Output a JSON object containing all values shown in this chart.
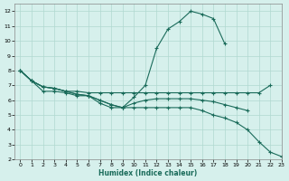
{
  "xlabel": "Humidex (Indice chaleur)",
  "bg_color": "#d6f0ec",
  "grid_color": "#b0d8d0",
  "line_color": "#1a6b5a",
  "xlim": [
    -0.5,
    23
  ],
  "ylim": [
    2,
    12.5
  ],
  "xticks": [
    0,
    1,
    2,
    3,
    4,
    5,
    6,
    7,
    8,
    9,
    10,
    11,
    12,
    13,
    14,
    15,
    16,
    17,
    18,
    19,
    20,
    21,
    22,
    23
  ],
  "yticks": [
    2,
    3,
    4,
    5,
    6,
    7,
    8,
    9,
    10,
    11,
    12
  ],
  "line1_x": [
    0,
    1,
    2,
    3,
    4,
    5,
    6,
    7,
    8,
    9,
    10,
    11,
    12,
    13,
    14,
    15,
    16,
    17,
    18
  ],
  "line1_y": [
    8.0,
    7.3,
    6.6,
    6.6,
    6.5,
    6.3,
    6.3,
    5.8,
    5.5,
    5.5,
    6.2,
    7.0,
    9.5,
    10.8,
    11.3,
    12.0,
    11.8,
    11.5,
    9.8
  ],
  "line2_x": [
    0,
    1,
    2,
    3,
    4,
    5,
    6,
    7,
    8,
    9,
    10,
    11,
    12,
    13,
    14,
    15,
    16,
    17,
    18,
    19,
    20,
    21,
    22
  ],
  "line2_y": [
    8.0,
    7.3,
    6.9,
    6.8,
    6.6,
    6.6,
    6.5,
    6.5,
    6.5,
    6.5,
    6.5,
    6.5,
    6.5,
    6.5,
    6.5,
    6.5,
    6.5,
    6.5,
    6.5,
    6.5,
    6.5,
    6.5,
    7.0
  ],
  "line3_x": [
    0,
    1,
    2,
    3,
    4,
    5,
    6,
    7,
    8,
    9,
    10,
    11,
    12,
    13,
    14,
    15,
    16,
    17,
    18,
    19,
    20
  ],
  "line3_y": [
    8.0,
    7.3,
    6.9,
    6.8,
    6.6,
    6.4,
    6.3,
    6.0,
    5.7,
    5.5,
    5.8,
    6.0,
    6.1,
    6.1,
    6.1,
    6.1,
    6.0,
    5.9,
    5.7,
    5.5,
    5.3
  ],
  "line4_x": [
    0,
    1,
    2,
    3,
    4,
    5,
    6,
    7,
    8,
    9,
    10,
    11,
    12,
    13,
    14,
    15,
    16,
    17,
    18,
    19,
    20,
    21,
    22,
    23
  ],
  "line4_y": [
    8.0,
    7.3,
    6.9,
    6.8,
    6.6,
    6.4,
    6.3,
    6.0,
    5.7,
    5.5,
    5.5,
    5.5,
    5.5,
    5.5,
    5.5,
    5.5,
    5.3,
    5.0,
    4.8,
    4.5,
    4.0,
    3.2,
    2.5,
    2.2
  ]
}
